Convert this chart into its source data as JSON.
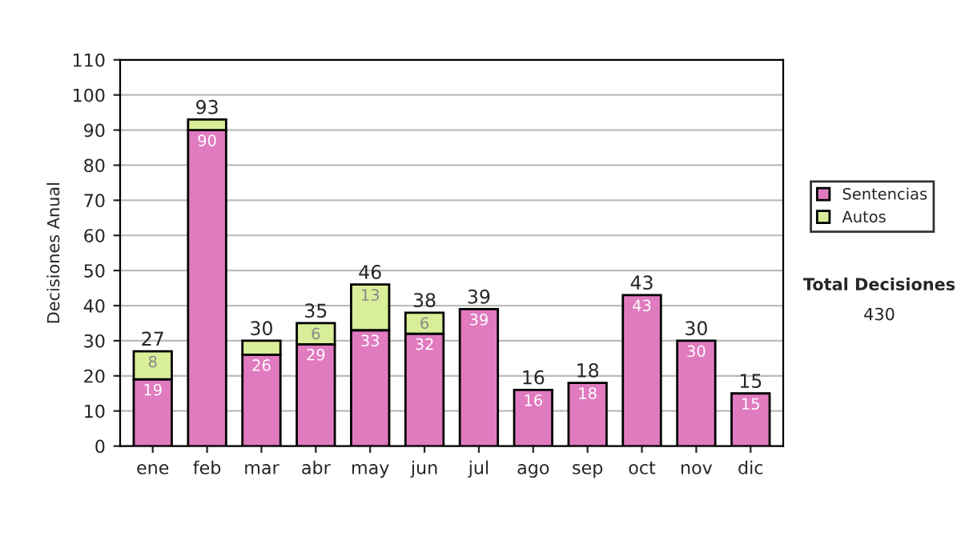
{
  "chart_data": {
    "type": "bar",
    "ylabel": "Decisiones Anual",
    "categories": [
      "ene",
      "feb",
      "mar",
      "abr",
      "may",
      "jun",
      "jul",
      "ago",
      "sep",
      "oct",
      "nov",
      "dic"
    ],
    "stacked": true,
    "series": [
      {
        "name": "Sentencias",
        "color": "#e07bbf",
        "values": [
          19,
          90,
          26,
          29,
          33,
          32,
          39,
          16,
          18,
          43,
          30,
          15
        ],
        "value_labels": [
          "19",
          "90",
          "26",
          "29",
          "33",
          "32",
          "39",
          "16",
          "18",
          "43",
          "30",
          "15"
        ]
      },
      {
        "name": "Autos",
        "color": "#d9ee99",
        "values": [
          8,
          3,
          4,
          6,
          13,
          6,
          0,
          0,
          0,
          0,
          0,
          0
        ],
        "value_labels": [
          "8",
          null,
          null,
          "6",
          "13",
          "6",
          null,
          null,
          null,
          null,
          null,
          null
        ]
      }
    ],
    "totals": [
      "27",
      "93",
      "30",
      "35",
      "46",
      "38",
      "39",
      "16",
      "18",
      "43",
      "30",
      "15"
    ],
    "ylim": [
      0,
      110
    ],
    "yticks": [
      0,
      10,
      20,
      30,
      40,
      50,
      60,
      70,
      80,
      90,
      100,
      110
    ],
    "grid": "y",
    "legend": "right",
    "annotations": [
      "Total Decisiones",
      "430"
    ]
  }
}
